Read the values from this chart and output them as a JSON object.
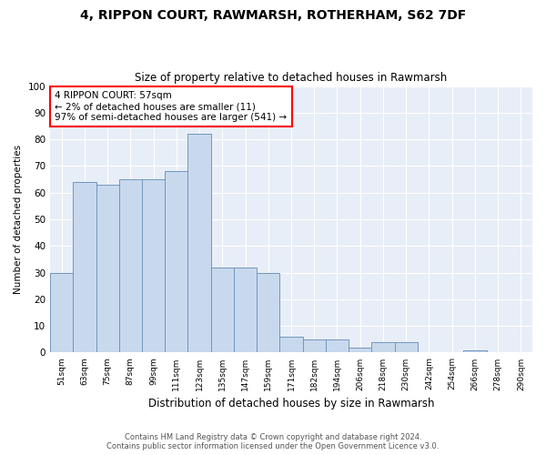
{
  "title": "4, RIPPON COURT, RAWMARSH, ROTHERHAM, S62 7DF",
  "subtitle": "Size of property relative to detached houses in Rawmarsh",
  "xlabel": "Distribution of detached houses by size in Rawmarsh",
  "ylabel": "Number of detached properties",
  "bar_color": "#c9d9ed",
  "bar_edge_color": "#7096c0",
  "background_color": "#e8eef7",
  "categories": [
    "51sqm",
    "63sqm",
    "75sqm",
    "87sqm",
    "99sqm",
    "111sqm",
    "123sqm",
    "135sqm",
    "147sqm",
    "159sqm",
    "171sqm",
    "182sqm",
    "194sqm",
    "206sqm",
    "218sqm",
    "230sqm",
    "242sqm",
    "254sqm",
    "266sqm",
    "278sqm",
    "290sqm"
  ],
  "values": [
    30,
    64,
    63,
    65,
    65,
    68,
    82,
    32,
    32,
    30,
    6,
    5,
    5,
    2,
    4,
    4,
    0,
    0,
    1,
    0,
    0
  ],
  "ylim": [
    0,
    100
  ],
  "yticks": [
    0,
    10,
    20,
    30,
    40,
    50,
    60,
    70,
    80,
    90,
    100
  ],
  "annotation_text": "4 RIPPON COURT: 57sqm\n← 2% of detached houses are smaller (11)\n97% of semi-detached houses are larger (541) →",
  "annotation_box_color": "white",
  "annotation_box_edge_color": "red",
  "footer_line1": "Contains HM Land Registry data © Crown copyright and database right 2024.",
  "footer_line2": "Contains public sector information licensed under the Open Government Licence v3.0."
}
